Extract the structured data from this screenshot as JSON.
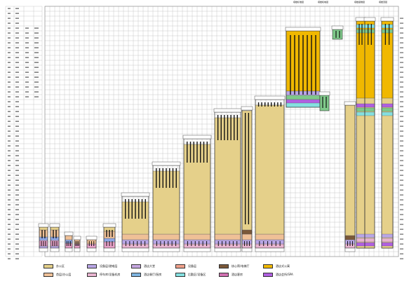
{
  "diagram": {
    "top_labels": [
      "塔楼标准层",
      "塔楼机电层",
      "塔楼避难层",
      "塔楼顶层"
    ],
    "legend": [
      {
        "id": "office",
        "label": "办公区",
        "color": "#e5d08a"
      },
      {
        "id": "lobby",
        "label": "首层/办公层",
        "color": "#efc097"
      },
      {
        "id": "transfer",
        "label": "设备层/避难层",
        "color": "#b9a6e6"
      },
      {
        "id": "parking",
        "label": "停车库/设备机房",
        "color": "#e8b4d0"
      },
      {
        "id": "hotel-lobby",
        "label": "酒店大堂",
        "color": "#c6a7e0"
      },
      {
        "id": "hotel-dining",
        "label": "酒店餐厅/厨房",
        "color": "#7eb4e0"
      },
      {
        "id": "mech",
        "label": "设备层",
        "color": "#f0a08a"
      },
      {
        "id": "service",
        "label": "后勤区/设备区",
        "color": "#84e0e0"
      },
      {
        "id": "core",
        "label": "核心筒/电梯厅",
        "color": "#7a5838"
      },
      {
        "id": "hotel-room",
        "label": "酒店客房",
        "color": "#d070b0"
      },
      {
        "id": "apartment",
        "label": "酒店式公寓",
        "color": "#f0b800"
      },
      {
        "id": "club",
        "label": "酒店会所/SPA",
        "color": "#b060e0"
      }
    ]
  }
}
